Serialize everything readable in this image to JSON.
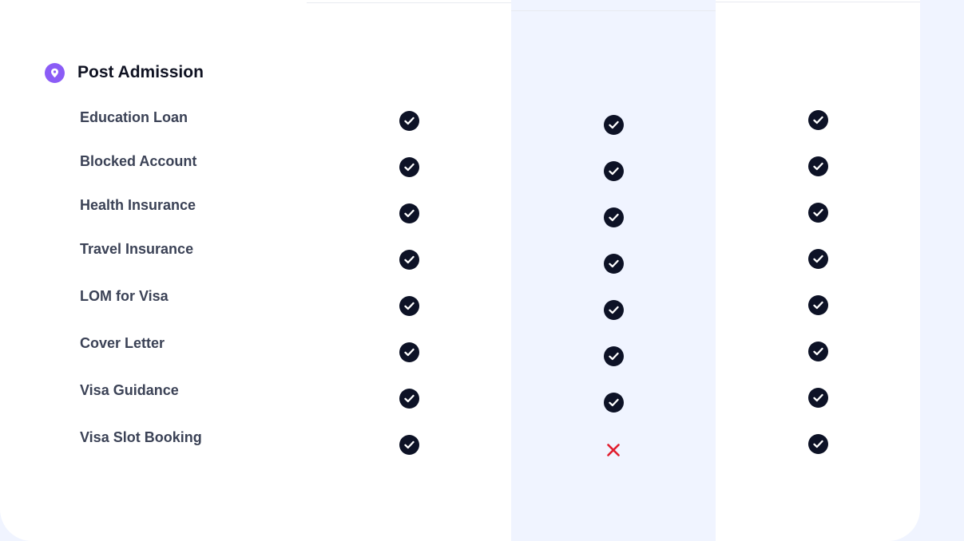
{
  "section": {
    "title": "Post Admission",
    "icon": "location-pin-icon",
    "accent_color": "#8b5cf6"
  },
  "plans_highlight_color": "#f0f4ff",
  "features": [
    {
      "label": "Education Loan",
      "plan1": true,
      "plan2": true,
      "plan3": true
    },
    {
      "label": "Blocked Account",
      "plan1": true,
      "plan2": true,
      "plan3": true
    },
    {
      "label": "Health Insurance",
      "plan1": true,
      "plan2": true,
      "plan3": true
    },
    {
      "label": "Travel Insurance",
      "plan1": true,
      "plan2": true,
      "plan3": true
    },
    {
      "label": "LOM for Visa",
      "plan1": true,
      "plan2": true,
      "plan3": true
    },
    {
      "label": "Cover Letter",
      "plan1": true,
      "plan2": true,
      "plan3": true
    },
    {
      "label": "Visa Guidance",
      "plan1": true,
      "plan2": true,
      "plan3": true
    },
    {
      "label": "Visa Slot Booking",
      "plan1": true,
      "plan2": false,
      "plan3": true
    }
  ],
  "colors": {
    "check": "#0d1226",
    "cross": "#e11d2e"
  }
}
